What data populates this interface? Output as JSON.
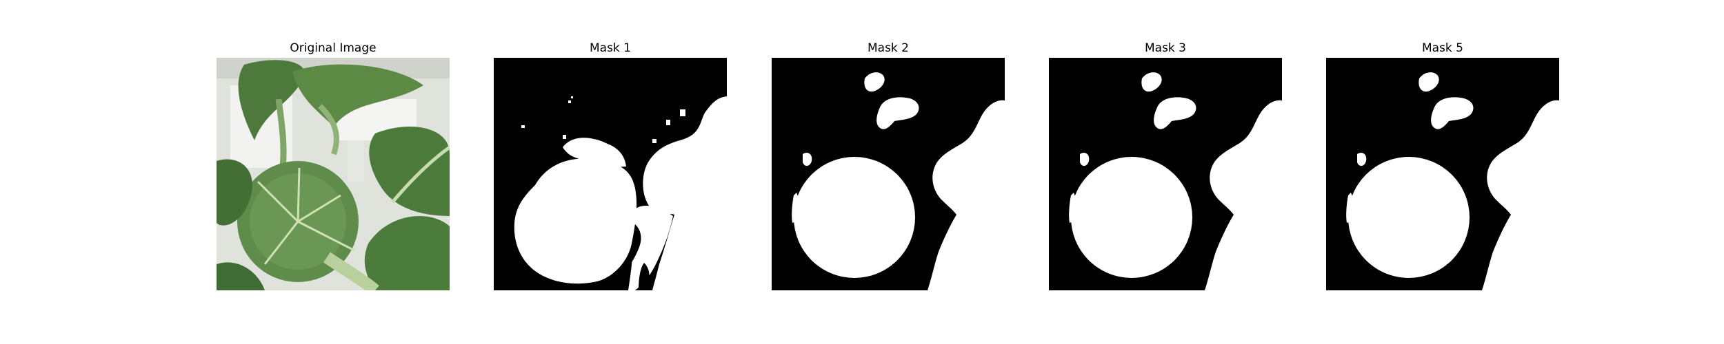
{
  "panels": [
    {
      "title": "Original Image",
      "kind": "photo"
    },
    {
      "title": "Mask 1",
      "kind": "mask"
    },
    {
      "title": "Mask 2",
      "kind": "mask"
    },
    {
      "title": "Mask 3",
      "kind": "mask"
    },
    {
      "title": "Mask 5",
      "kind": "mask"
    }
  ],
  "colors": {
    "mask_background": "#000000",
    "mask_foreground": "#ffffff",
    "leaf_dark": "#3f6b35",
    "leaf_mid": "#5f8c4a",
    "leaf_light": "#9cbf7c",
    "vein": "#cfe2b5",
    "background_white": "#e9ece6"
  }
}
